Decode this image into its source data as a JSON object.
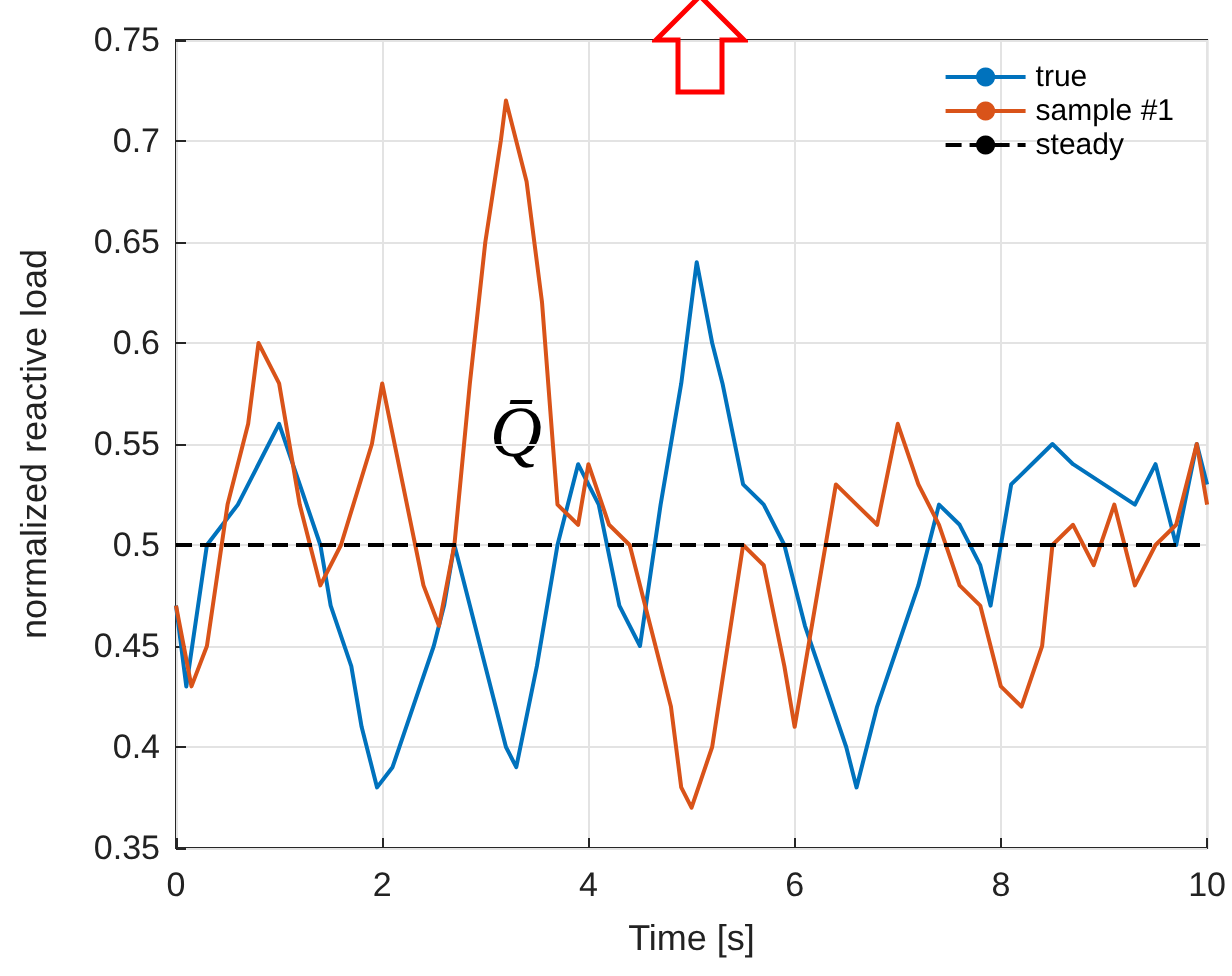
{
  "chart_data": {
    "type": "line",
    "xlabel": "Time [s]",
    "ylabel": "normalized reactive load",
    "xlim": [
      0,
      10
    ],
    "ylim": [
      0.35,
      0.75
    ],
    "xticks": [
      0,
      2,
      4,
      6,
      8,
      10
    ],
    "yticks": [
      0.35,
      0.4,
      0.45,
      0.5,
      0.55,
      0.6,
      0.65,
      0.7,
      0.75
    ],
    "grid": true,
    "legend": "top right",
    "marker": "none",
    "annotations": [
      "Q̄"
    ],
    "series": [
      {
        "name": "true",
        "color": "#0072bd",
        "x": [
          0,
          0.1,
          0.3,
          0.6,
          0.9,
          1.0,
          1.2,
          1.4,
          1.5,
          1.7,
          1.8,
          1.95,
          2.1,
          2.3,
          2.5,
          2.6,
          2.7,
          2.85,
          3.0,
          3.2,
          3.3,
          3.5,
          3.7,
          3.9,
          4.1,
          4.3,
          4.5,
          4.7,
          4.9,
          5.05,
          5.2,
          5.3,
          5.5,
          5.7,
          5.9,
          6.1,
          6.3,
          6.5,
          6.6,
          6.8,
          7.0,
          7.2,
          7.4,
          7.6,
          7.8,
          7.9,
          8.1,
          8.3,
          8.5,
          8.7,
          9.0,
          9.3,
          9.5,
          9.7,
          9.9,
          10
        ],
        "values": [
          0.47,
          0.43,
          0.5,
          0.52,
          0.55,
          0.56,
          0.53,
          0.5,
          0.47,
          0.44,
          0.41,
          0.38,
          0.39,
          0.42,
          0.45,
          0.47,
          0.5,
          0.47,
          0.44,
          0.4,
          0.39,
          0.44,
          0.5,
          0.54,
          0.52,
          0.47,
          0.45,
          0.52,
          0.58,
          0.64,
          0.6,
          0.58,
          0.53,
          0.52,
          0.5,
          0.46,
          0.43,
          0.4,
          0.38,
          0.42,
          0.45,
          0.48,
          0.52,
          0.51,
          0.49,
          0.47,
          0.53,
          0.54,
          0.55,
          0.54,
          0.53,
          0.52,
          0.54,
          0.5,
          0.55,
          0.53
        ]
      },
      {
        "name": "sample #1",
        "color": "#d95319",
        "x": [
          0,
          0.15,
          0.3,
          0.5,
          0.7,
          0.8,
          1.0,
          1.2,
          1.4,
          1.6,
          1.9,
          2.0,
          2.2,
          2.4,
          2.55,
          2.7,
          2.85,
          3.0,
          3.15,
          3.2,
          3.4,
          3.55,
          3.7,
          3.9,
          4.0,
          4.2,
          4.4,
          4.6,
          4.8,
          4.9,
          5.0,
          5.2,
          5.35,
          5.5,
          5.7,
          5.9,
          6.0,
          6.2,
          6.4,
          6.6,
          6.8,
          7.0,
          7.2,
          7.4,
          7.6,
          7.8,
          8.0,
          8.2,
          8.4,
          8.5,
          8.7,
          8.9,
          9.1,
          9.3,
          9.5,
          9.7,
          9.9,
          10
        ],
        "values": [
          0.47,
          0.43,
          0.45,
          0.52,
          0.56,
          0.6,
          0.58,
          0.52,
          0.48,
          0.5,
          0.55,
          0.58,
          0.53,
          0.48,
          0.46,
          0.5,
          0.58,
          0.65,
          0.7,
          0.72,
          0.68,
          0.62,
          0.52,
          0.51,
          0.54,
          0.51,
          0.5,
          0.46,
          0.42,
          0.38,
          0.37,
          0.4,
          0.45,
          0.5,
          0.49,
          0.44,
          0.41,
          0.47,
          0.53,
          0.52,
          0.51,
          0.56,
          0.53,
          0.51,
          0.48,
          0.47,
          0.43,
          0.42,
          0.45,
          0.5,
          0.51,
          0.49,
          0.52,
          0.48,
          0.5,
          0.51,
          0.55,
          0.52
        ]
      },
      {
        "name": "steady",
        "color": "#000000",
        "line_style": "dashed",
        "x": [
          0,
          10
        ],
        "values": [
          0.5,
          0.5
        ]
      }
    ]
  }
}
